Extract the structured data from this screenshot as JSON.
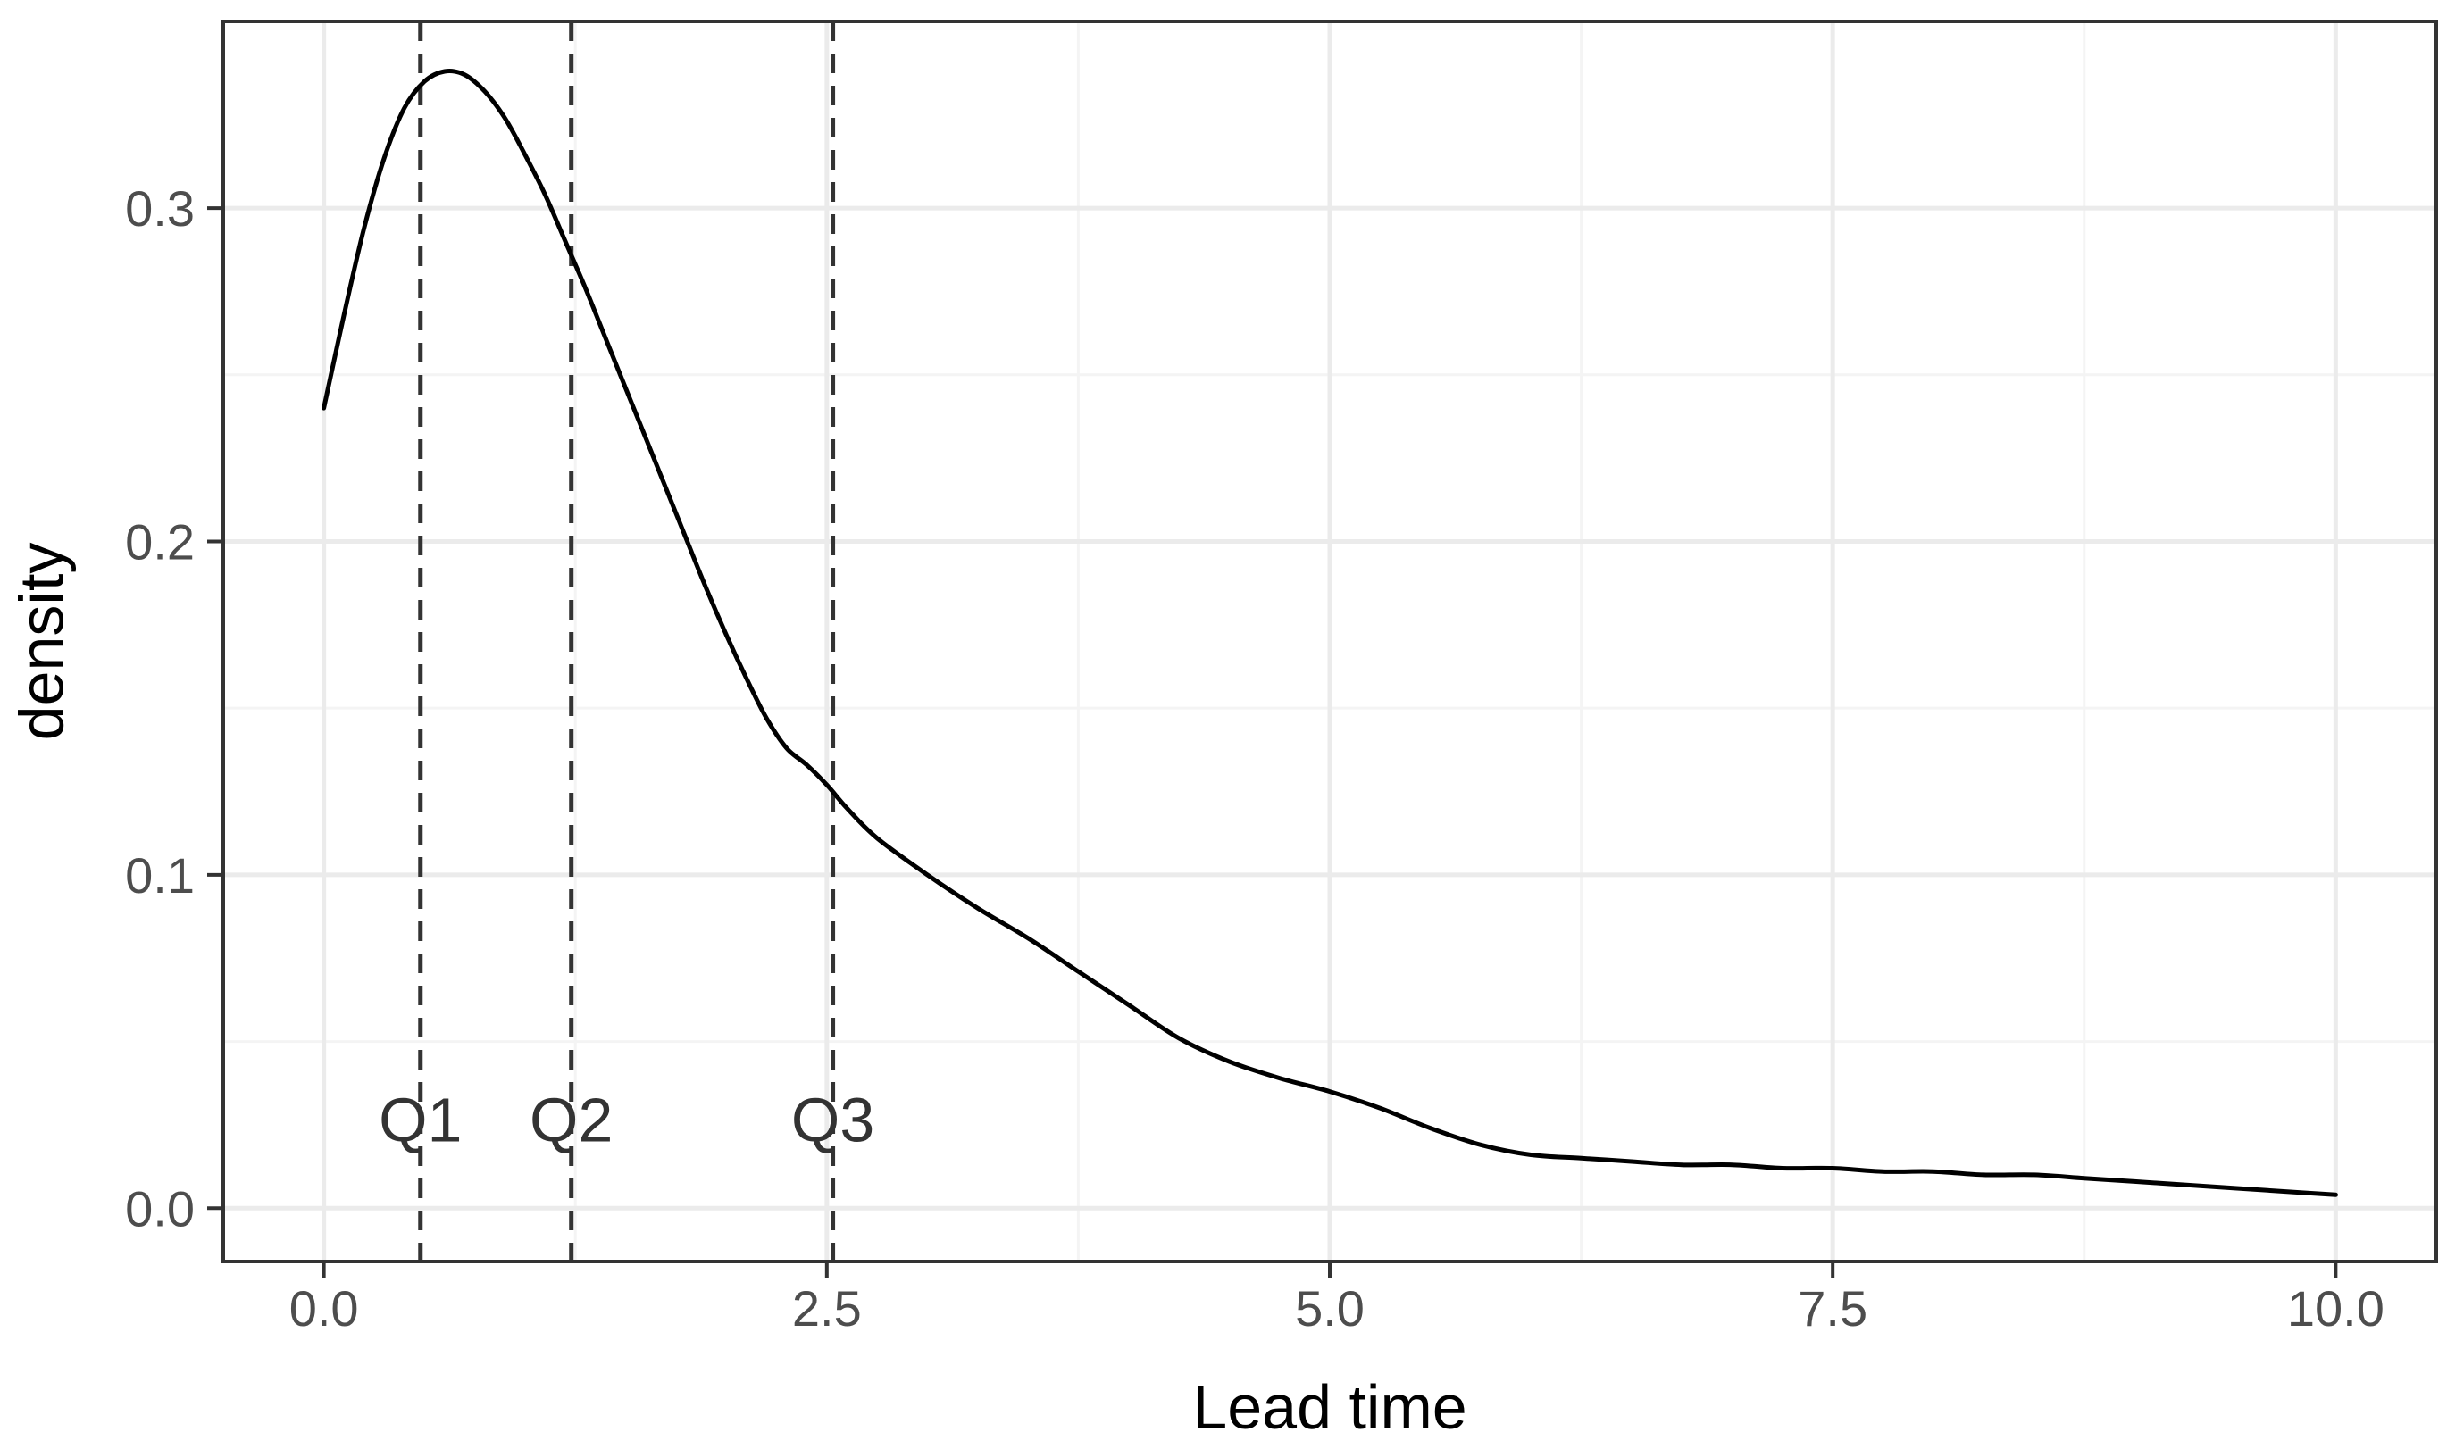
{
  "chart_data": {
    "type": "line",
    "title": "",
    "xlabel": "Lead time",
    "ylabel": "density",
    "xlim": [
      -0.5,
      10.5
    ],
    "ylim": [
      -0.016,
      0.356
    ],
    "x_ticks": [
      0.0,
      2.5,
      5.0,
      7.5,
      10.0
    ],
    "x_tick_labels": [
      "0.0",
      "2.5",
      "5.0",
      "7.5",
      "10.0"
    ],
    "x_minor_ticks": [
      1.25,
      3.75,
      6.25,
      8.75
    ],
    "y_ticks": [
      0.0,
      0.1,
      0.2,
      0.3
    ],
    "y_tick_labels": [
      "0.0",
      "0.1",
      "0.2",
      "0.3"
    ],
    "y_minor_ticks": [
      0.05,
      0.15,
      0.25
    ],
    "grid": true,
    "series": [
      {
        "line_color": "#000000",
        "x": [
          0.0,
          0.1,
          0.2,
          0.3,
          0.4,
          0.5,
          0.6,
          0.7,
          0.8,
          0.9,
          1.0,
          1.1,
          1.2,
          1.3,
          1.4,
          1.5,
          1.6,
          1.7,
          1.8,
          1.9,
          2.0,
          2.1,
          2.2,
          2.3,
          2.4,
          2.5,
          2.6,
          2.75,
          3.0,
          3.25,
          3.5,
          3.75,
          4.0,
          4.25,
          4.5,
          4.75,
          5.0,
          5.25,
          5.5,
          5.75,
          6.0,
          6.25,
          6.5,
          6.75,
          7.0,
          7.25,
          7.5,
          7.75,
          8.0,
          8.25,
          8.5,
          8.75,
          9.0,
          9.25,
          9.5,
          9.75,
          10.0
        ],
        "y": [
          0.24,
          0.268,
          0.294,
          0.315,
          0.33,
          0.338,
          0.341,
          0.34,
          0.335,
          0.327,
          0.316,
          0.304,
          0.29,
          0.276,
          0.261,
          0.246,
          0.231,
          0.216,
          0.201,
          0.186,
          0.172,
          0.159,
          0.147,
          0.138,
          0.133,
          0.127,
          0.12,
          0.111,
          0.1,
          0.09,
          0.081,
          0.071,
          0.061,
          0.051,
          0.044,
          0.039,
          0.035,
          0.03,
          0.024,
          0.019,
          0.016,
          0.015,
          0.014,
          0.013,
          0.013,
          0.012,
          0.012,
          0.011,
          0.011,
          0.01,
          0.01,
          0.009,
          0.008,
          0.007,
          0.006,
          0.005,
          0.004
        ]
      }
    ],
    "annotations": [
      {
        "label": "Q1",
        "x": 0.48,
        "label_y": 0.025,
        "line_style": "dashed"
      },
      {
        "label": "Q2",
        "x": 1.23,
        "label_y": 0.025,
        "line_style": "dashed"
      },
      {
        "label": "Q3",
        "x": 2.53,
        "label_y": 0.025,
        "line_style": "dashed"
      }
    ],
    "colors": {
      "panel_border": "#333333",
      "grid_major": "#ebebeb",
      "grid_minor": "#f4f4f4",
      "annotation_line": "#333333"
    }
  }
}
